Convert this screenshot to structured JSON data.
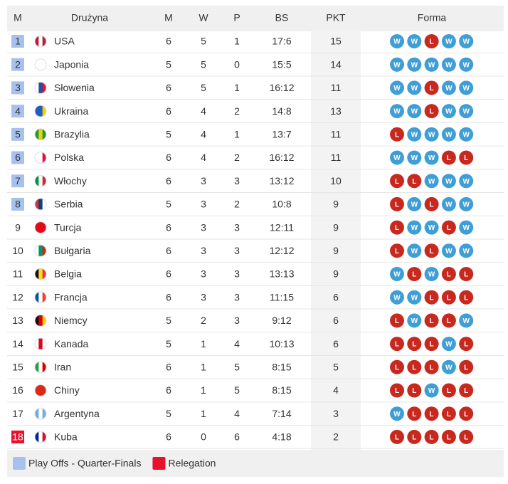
{
  "table": {
    "headers": [
      "M",
      "Drużyna",
      "M",
      "W",
      "P",
      "BS",
      "PKT",
      "Forma"
    ],
    "rows": [
      {
        "pos": "1",
        "team": "USA",
        "m": "6",
        "w": "5",
        "p": "1",
        "bs": "17:6",
        "pkt": "15",
        "form": [
          "W",
          "W",
          "L",
          "W",
          "W"
        ],
        "marker_color": "#a7c1ef"
      },
      {
        "pos": "2",
        "team": "Japonia",
        "m": "5",
        "w": "5",
        "p": "0",
        "bs": "15:5",
        "pkt": "14",
        "form": [
          "W",
          "W",
          "W",
          "W",
          "W"
        ],
        "marker_color": "#a7c1ef"
      },
      {
        "pos": "3",
        "team": "Słowenia",
        "m": "6",
        "w": "5",
        "p": "1",
        "bs": "16:12",
        "pkt": "11",
        "form": [
          "W",
          "W",
          "L",
          "W",
          "W"
        ],
        "marker_color": "#a7c1ef"
      },
      {
        "pos": "4",
        "team": "Ukraina",
        "m": "6",
        "w": "4",
        "p": "2",
        "bs": "14:8",
        "pkt": "13",
        "form": [
          "W",
          "W",
          "L",
          "W",
          "W"
        ],
        "marker_color": "#a7c1ef"
      },
      {
        "pos": "5",
        "team": "Brazylia",
        "m": "5",
        "w": "4",
        "p": "1",
        "bs": "13:7",
        "pkt": "11",
        "form": [
          "L",
          "W",
          "W",
          "W",
          "W"
        ],
        "marker_color": "#a7c1ef"
      },
      {
        "pos": "6",
        "team": "Polska",
        "m": "6",
        "w": "4",
        "p": "2",
        "bs": "16:12",
        "pkt": "11",
        "form": [
          "W",
          "W",
          "W",
          "L",
          "L"
        ],
        "marker_color": "#a7c1ef"
      },
      {
        "pos": "7",
        "team": "Włochy",
        "m": "6",
        "w": "3",
        "p": "3",
        "bs": "13:12",
        "pkt": "10",
        "form": [
          "L",
          "L",
          "W",
          "W",
          "W"
        ],
        "marker_color": "#a7c1ef"
      },
      {
        "pos": "8",
        "team": "Serbia",
        "m": "5",
        "w": "3",
        "p": "2",
        "bs": "10:8",
        "pkt": "9",
        "form": [
          "L",
          "W",
          "L",
          "W",
          "W"
        ],
        "marker_color": "#a7c1ef"
      },
      {
        "pos": "9",
        "team": "Turcja",
        "m": "6",
        "w": "3",
        "p": "3",
        "bs": "12:11",
        "pkt": "9",
        "form": [
          "L",
          "W",
          "W",
          "L",
          "W"
        ]
      },
      {
        "pos": "10",
        "team": "Bułgaria",
        "m": "6",
        "w": "3",
        "p": "3",
        "bs": "12:12",
        "pkt": "9",
        "form": [
          "L",
          "W",
          "L",
          "W",
          "W"
        ]
      },
      {
        "pos": "11",
        "team": "Belgia",
        "m": "6",
        "w": "3",
        "p": "3",
        "bs": "13:13",
        "pkt": "9",
        "form": [
          "W",
          "L",
          "W",
          "L",
          "L"
        ]
      },
      {
        "pos": "12",
        "team": "Francja",
        "m": "6",
        "w": "3",
        "p": "3",
        "bs": "11:15",
        "pkt": "6",
        "form": [
          "W",
          "W",
          "L",
          "L",
          "L"
        ]
      },
      {
        "pos": "13",
        "team": "Niemcy",
        "m": "5",
        "w": "2",
        "p": "3",
        "bs": "9:12",
        "pkt": "6",
        "form": [
          "L",
          "W",
          "L",
          "L",
          "W"
        ]
      },
      {
        "pos": "14",
        "team": "Kanada",
        "m": "5",
        "w": "1",
        "p": "4",
        "bs": "10:13",
        "pkt": "6",
        "form": [
          "L",
          "L",
          "L",
          "W",
          "L"
        ]
      },
      {
        "pos": "15",
        "team": "Iran",
        "m": "6",
        "w": "1",
        "p": "5",
        "bs": "8:15",
        "pkt": "5",
        "form": [
          "L",
          "L",
          "L",
          "W",
          "L"
        ]
      },
      {
        "pos": "16",
        "team": "Chiny",
        "m": "6",
        "w": "1",
        "p": "5",
        "bs": "8:15",
        "pkt": "4",
        "form": [
          "L",
          "L",
          "W",
          "L",
          "L"
        ]
      },
      {
        "pos": "17",
        "team": "Argentyna",
        "m": "5",
        "w": "1",
        "p": "4",
        "bs": "7:14",
        "pkt": "3",
        "form": [
          "W",
          "L",
          "L",
          "L",
          "L"
        ]
      },
      {
        "pos": "18",
        "team": "Kuba",
        "m": "6",
        "w": "0",
        "p": "6",
        "bs": "4:18",
        "pkt": "2",
        "form": [
          "L",
          "L",
          "L",
          "L",
          "L"
        ],
        "marker_color": "#e8112d"
      }
    ],
    "legend": [
      {
        "label": "Play Offs - Quarter-Finals",
        "color": "#a7c1ef"
      },
      {
        "label": "Relegation",
        "color": "#e8112d"
      }
    ]
  }
}
